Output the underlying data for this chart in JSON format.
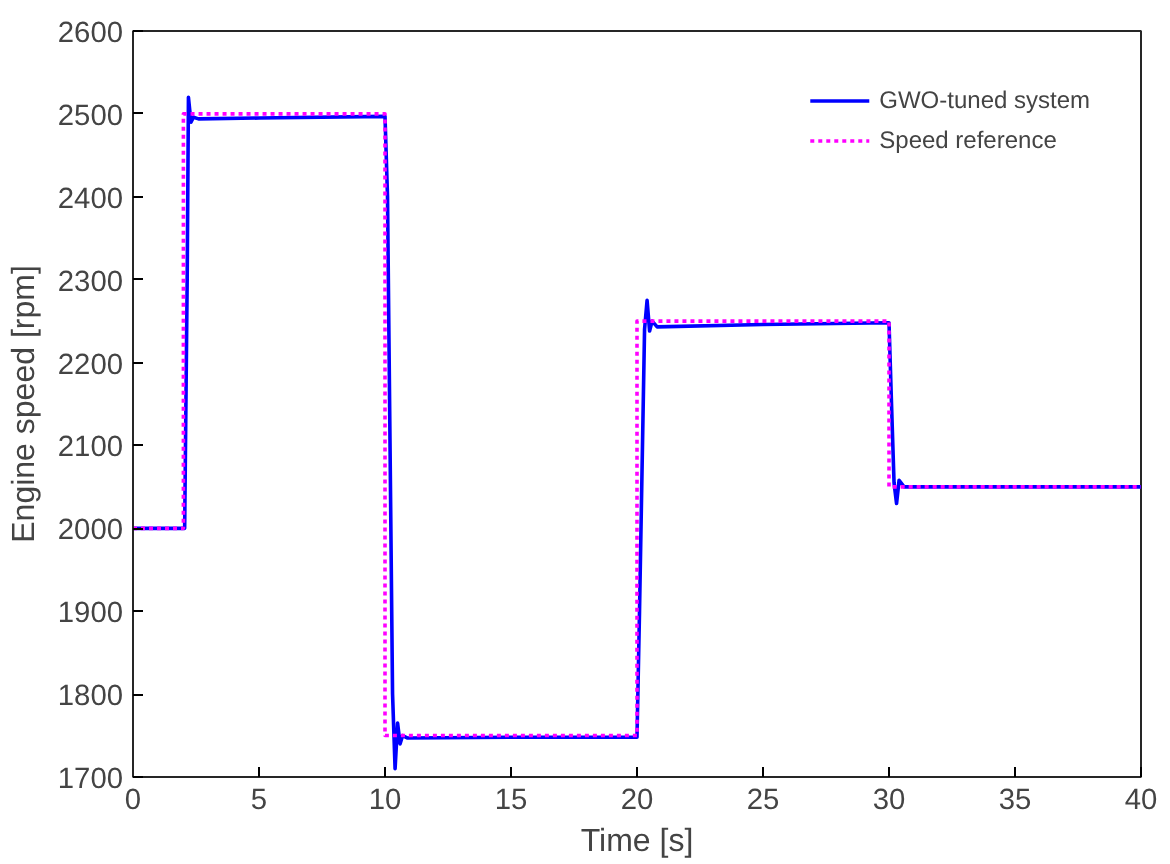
{
  "chart_data": {
    "type": "line",
    "xlabel": "Time [s]",
    "ylabel": "Engine speed [rpm]",
    "xlim": [
      0,
      40
    ],
    "ylim": [
      1700,
      2600
    ],
    "xticks": [
      0,
      5,
      10,
      15,
      20,
      25,
      30,
      35,
      40
    ],
    "yticks": [
      1700,
      1800,
      1900,
      2000,
      2100,
      2200,
      2300,
      2400,
      2500,
      2600
    ],
    "grid": false,
    "legend": "top right",
    "marker": "none",
    "series": [
      {
        "name": "GWO-tuned system",
        "color": "#0000ff",
        "line_style": "solid",
        "x": [
          0,
          2.05,
          2.15,
          2.2,
          2.3,
          2.4,
          2.6,
          5,
          10,
          10.1,
          10.3,
          10.4,
          10.5,
          10.6,
          10.7,
          10.9,
          15,
          20,
          20.1,
          20.3,
          20.4,
          20.5,
          20.6,
          20.8,
          25,
          30,
          30.1,
          30.2,
          30.3,
          30.4,
          30.6,
          40
        ],
        "values": [
          2000,
          2000,
          2300,
          2520,
          2490,
          2496,
          2494,
          2495,
          2497,
          2400,
          1800,
          1710,
          1765,
          1740,
          1750,
          1747,
          1748,
          1748,
          1900,
          2240,
          2275,
          2238,
          2250,
          2243,
          2246,
          2248,
          2150,
          2055,
          2030,
          2058,
          2050,
          2050
        ]
      },
      {
        "name": "Speed reference",
        "color": "#ff00ff",
        "line_style": "dotted",
        "x": [
          0,
          2,
          2,
          10,
          10,
          20,
          20,
          30,
          30,
          40
        ],
        "values": [
          2000,
          2000,
          2500,
          2500,
          1750,
          1750,
          2250,
          2250,
          2050,
          2050
        ]
      }
    ]
  }
}
